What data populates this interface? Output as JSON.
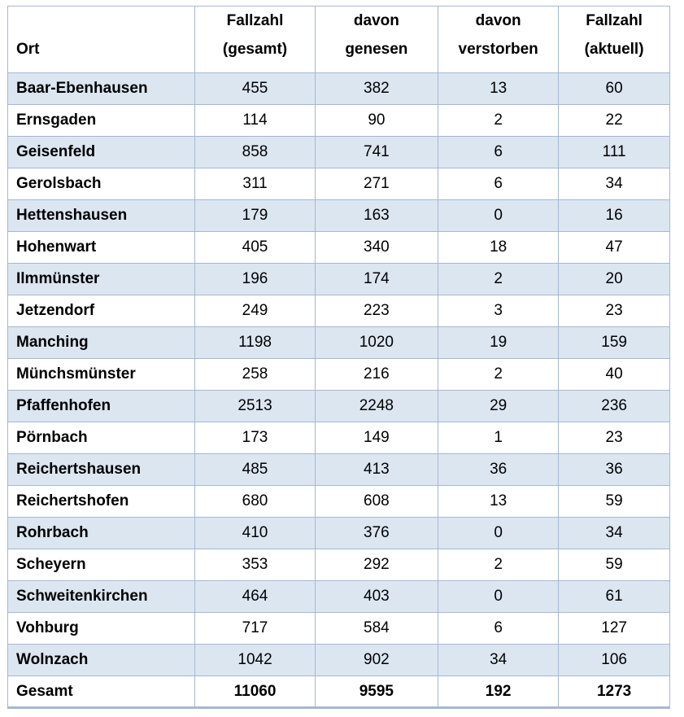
{
  "colors": {
    "row_shaded": "#dce6f1",
    "row_white": "#ffffff",
    "border": "#a5b8d2",
    "text": "#000000"
  },
  "table": {
    "headers": [
      "Ort",
      "Fallzahl\n(gesamt)",
      "davon\ngenesen",
      "davon\nverstorben",
      "Fallzahl\n(aktuell)"
    ],
    "rows": [
      [
        "Baar-Ebenhausen",
        "455",
        "382",
        "13",
        "60"
      ],
      [
        "Ernsgaden",
        "114",
        "90",
        "2",
        "22"
      ],
      [
        "Geisenfeld",
        "858",
        "741",
        "6",
        "111"
      ],
      [
        "Gerolsbach",
        "311",
        "271",
        "6",
        "34"
      ],
      [
        "Hettenshausen",
        "179",
        "163",
        "0",
        "16"
      ],
      [
        "Hohenwart",
        "405",
        "340",
        "18",
        "47"
      ],
      [
        "Ilmmünster",
        "196",
        "174",
        "2",
        "20"
      ],
      [
        "Jetzendorf",
        "249",
        "223",
        "3",
        "23"
      ],
      [
        "Manching",
        "1198",
        "1020",
        "19",
        "159"
      ],
      [
        "Münchsmünster",
        "258",
        "216",
        "2",
        "40"
      ],
      [
        "Pfaffenhofen",
        "2513",
        "2248",
        "29",
        "236"
      ],
      [
        "Pörnbach",
        "173",
        "149",
        "1",
        "23"
      ],
      [
        "Reichertshausen",
        "485",
        "413",
        "36",
        "36"
      ],
      [
        "Reichertshofen",
        "680",
        "608",
        "13",
        "59"
      ],
      [
        "Rohrbach",
        "410",
        "376",
        "0",
        "34"
      ],
      [
        "Scheyern",
        "353",
        "292",
        "2",
        "59"
      ],
      [
        "Schweitenkirchen",
        "464",
        "403",
        "0",
        "61"
      ],
      [
        "Vohburg",
        "717",
        "584",
        "6",
        "127"
      ],
      [
        "Wolnzach",
        "1042",
        "902",
        "34",
        "106"
      ]
    ],
    "total_row": [
      "Gesamt",
      "11060",
      "9595",
      "192",
      "1273"
    ]
  }
}
